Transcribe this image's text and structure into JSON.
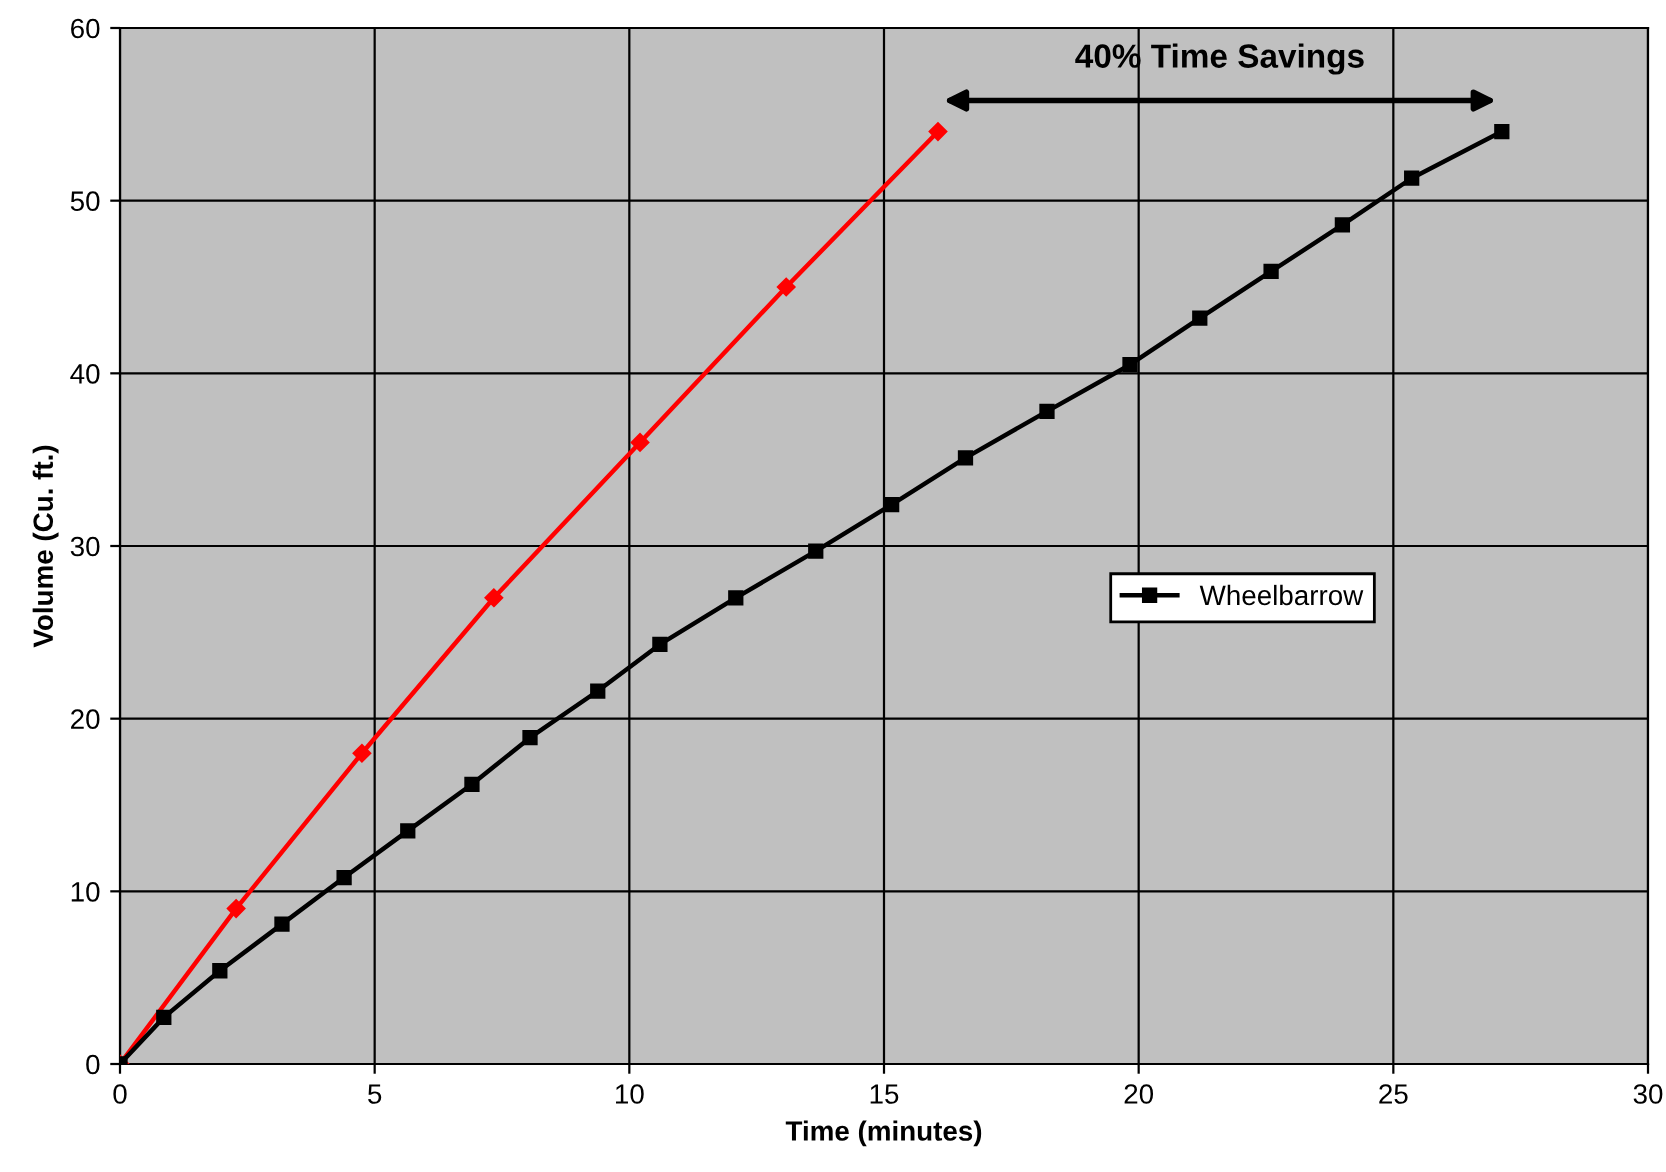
{
  "chart_data": {
    "type": "line",
    "xlabel": "Time (minutes)",
    "ylabel": "Volume (Cu. ft.)",
    "xlim": [
      0,
      30
    ],
    "xticks": [
      0,
      5,
      10,
      15,
      20,
      25,
      30
    ],
    "ylim": [
      0,
      60
    ],
    "yticks": [
      0,
      10,
      20,
      30,
      40,
      50,
      60
    ],
    "grid": true,
    "legend": "right",
    "annotations": [
      "40% Time Savings"
    ],
    "series": [
      {
        "color": "#ff0000",
        "marker": "diamond",
        "x": [
          0,
          2.28,
          4.75,
          7.34,
          10.21,
          13.08,
          16.06
        ],
        "values": [
          0,
          9,
          18,
          27,
          36,
          45,
          54
        ]
      },
      {
        "name": "Wheelbarrow",
        "color": "#000000",
        "marker": "square",
        "x": [
          0,
          0.86,
          1.96,
          3.18,
          4.4,
          5.65,
          6.91,
          8.05,
          9.38,
          10.6,
          12.09,
          13.66,
          15.15,
          16.6,
          18.2,
          19.83,
          21.2,
          22.6,
          24.0,
          25.36,
          27.13
        ],
        "values": [
          0,
          2.7,
          5.4,
          8.1,
          10.8,
          13.5,
          16.2,
          18.9,
          21.6,
          24.3,
          27,
          29.7,
          32.4,
          35.1,
          37.8,
          40.5,
          43.2,
          45.9,
          48.6,
          51.3,
          54
        ]
      }
    ]
  }
}
